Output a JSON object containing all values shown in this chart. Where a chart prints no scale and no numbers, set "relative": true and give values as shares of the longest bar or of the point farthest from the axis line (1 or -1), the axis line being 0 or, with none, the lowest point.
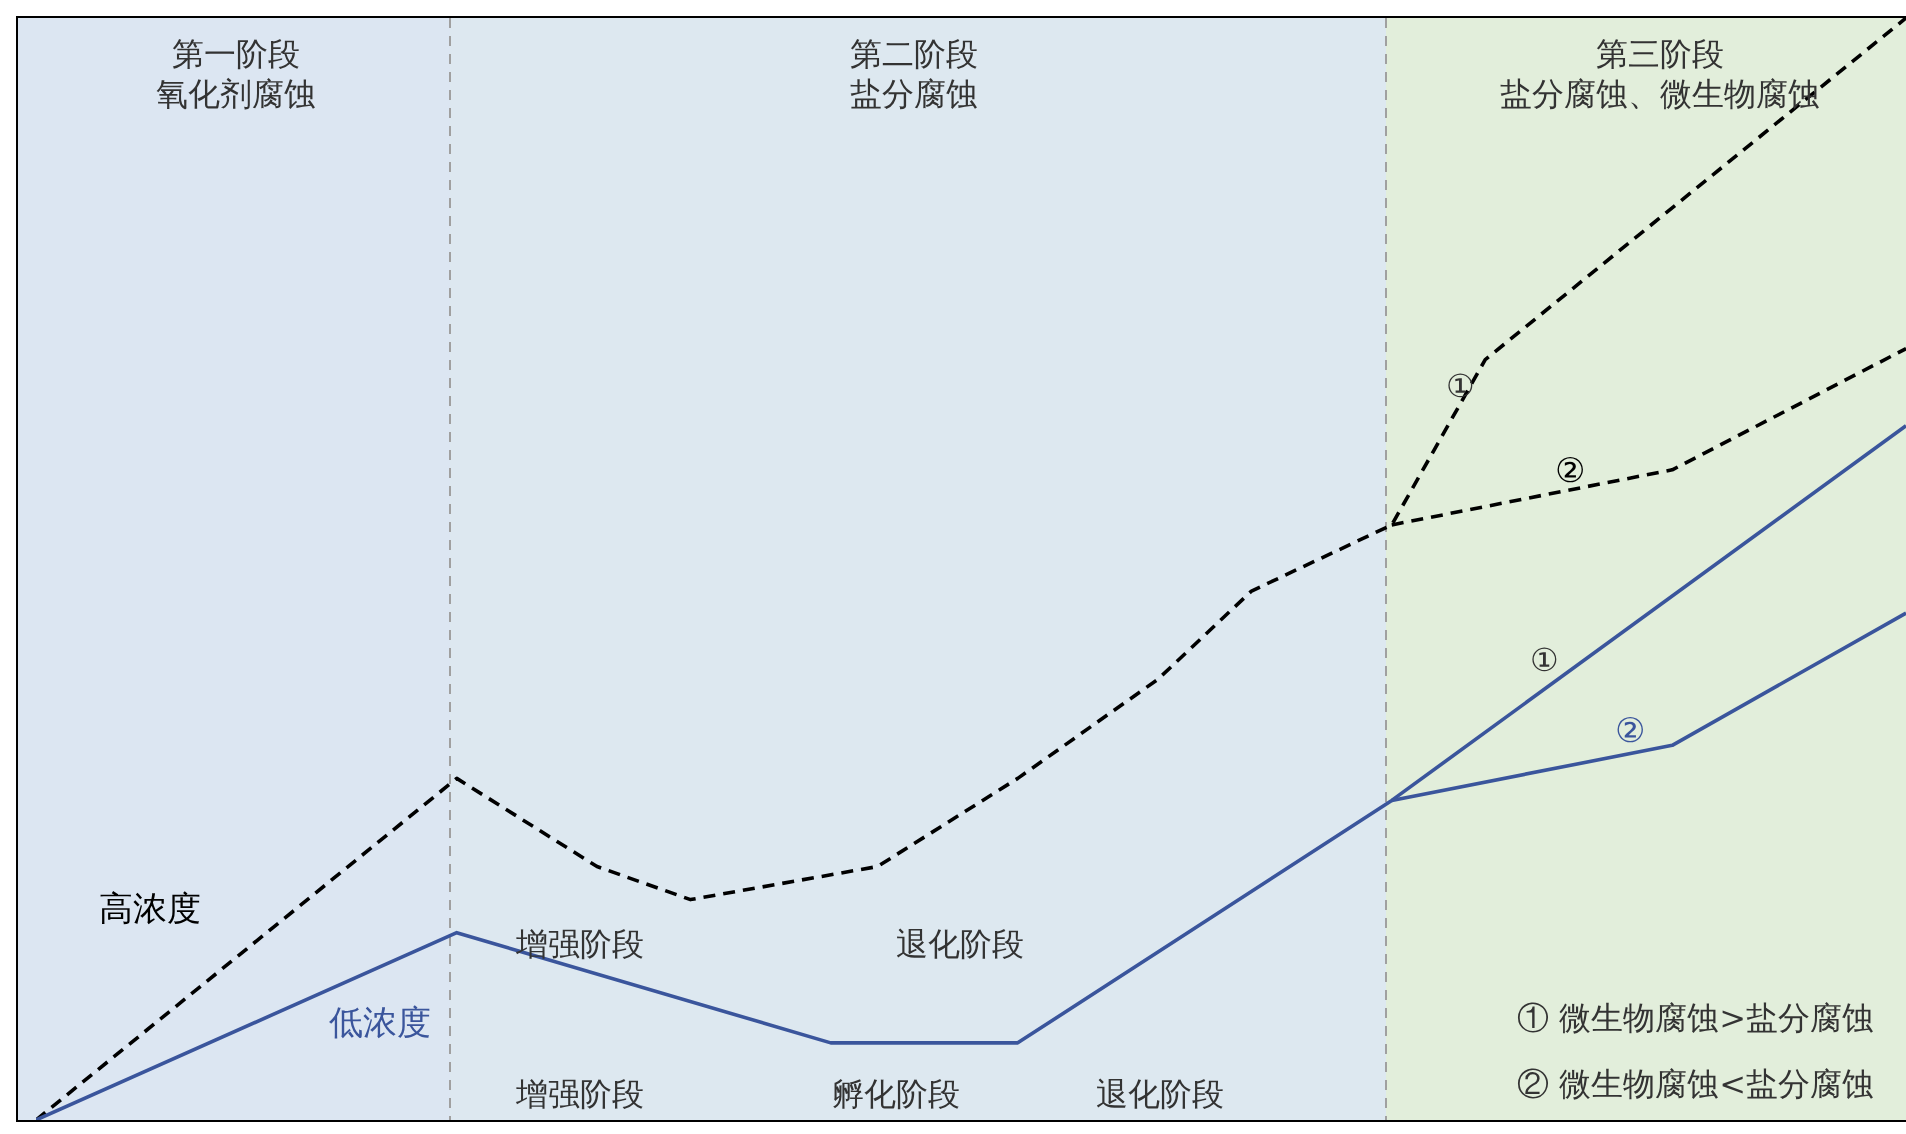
{
  "chart_data": {
    "type": "line",
    "relative": true,
    "tick_labels": false,
    "categories": [
      null,
      null,
      null,
      null,
      null,
      null,
      null,
      null,
      null,
      null,
      null,
      null,
      null,
      null,
      null,
      null,
      null,
      null,
      null,
      null,
      null,
      null,
      null,
      null,
      null,
      null,
      null,
      null,
      null,
      null,
      null,
      null,
      null,
      null,
      null,
      null,
      null,
      null,
      null,
      null,
      null
    ],
    "series": [
      {
        "name": "高浓度",
        "color": "#000000",
        "line_style": "dashed",
        "values": [
          0,
          null,
          null,
          null,
          null,
          null,
          null,
          null,
          null,
          0.31,
          null,
          null,
          0.23,
          null,
          0.2,
          null,
          null,
          null,
          0.23,
          null,
          null,
          0.31,
          null,
          null,
          0.4,
          null,
          0.48,
          null,
          null,
          0.54,
          null,
          0.69,
          null,
          null,
          null,
          null,
          null,
          null,
          null,
          null,
          1
        ]
      },
      {
        "name": "②",
        "color": "#000000",
        "line_style": "dashed",
        "values": [
          null,
          null,
          null,
          null,
          null,
          null,
          null,
          null,
          null,
          null,
          null,
          null,
          null,
          null,
          null,
          null,
          null,
          null,
          null,
          null,
          null,
          null,
          null,
          null,
          null,
          null,
          null,
          null,
          null,
          0.54,
          null,
          null,
          null,
          null,
          null,
          0.59,
          null,
          null,
          null,
          null,
          0.7
        ]
      },
      {
        "name": "低浓度",
        "color": "#3a559c",
        "line_style": "solid",
        "values": [
          0,
          null,
          null,
          null,
          null,
          null,
          null,
          null,
          null,
          0.17,
          null,
          null,
          null,
          null,
          null,
          null,
          null,
          0.07,
          null,
          null,
          null,
          0.07,
          null,
          null,
          null,
          null,
          null,
          null,
          null,
          0.29,
          null,
          null,
          null,
          null,
          null,
          null,
          null,
          null,
          null,
          null,
          0.63
        ]
      },
      {
        "name": "②",
        "color": "#3a559c",
        "line_style": "solid",
        "values": [
          null,
          null,
          null,
          null,
          null,
          null,
          null,
          null,
          null,
          null,
          null,
          null,
          null,
          null,
          null,
          null,
          null,
          null,
          null,
          null,
          null,
          null,
          null,
          null,
          null,
          null,
          null,
          null,
          null,
          0.29,
          null,
          null,
          null,
          null,
          null,
          0.34,
          null,
          null,
          null,
          null,
          0.46
        ]
      }
    ],
    "annotations": [
      "第一阶段",
      "氧化剂腐蚀",
      "第二阶段",
      "盐分腐蚀",
      "第三阶段",
      "盐分腐蚀、微生物腐蚀",
      "增强阶段",
      "退化阶段",
      "增强阶段",
      "孵化阶段",
      "退化阶段",
      "① 微生物腐蚀>盐分腐蚀",
      "② 微生物腐蚀<盐分腐蚀",
      "①",
      "①"
    ]
  }
}
